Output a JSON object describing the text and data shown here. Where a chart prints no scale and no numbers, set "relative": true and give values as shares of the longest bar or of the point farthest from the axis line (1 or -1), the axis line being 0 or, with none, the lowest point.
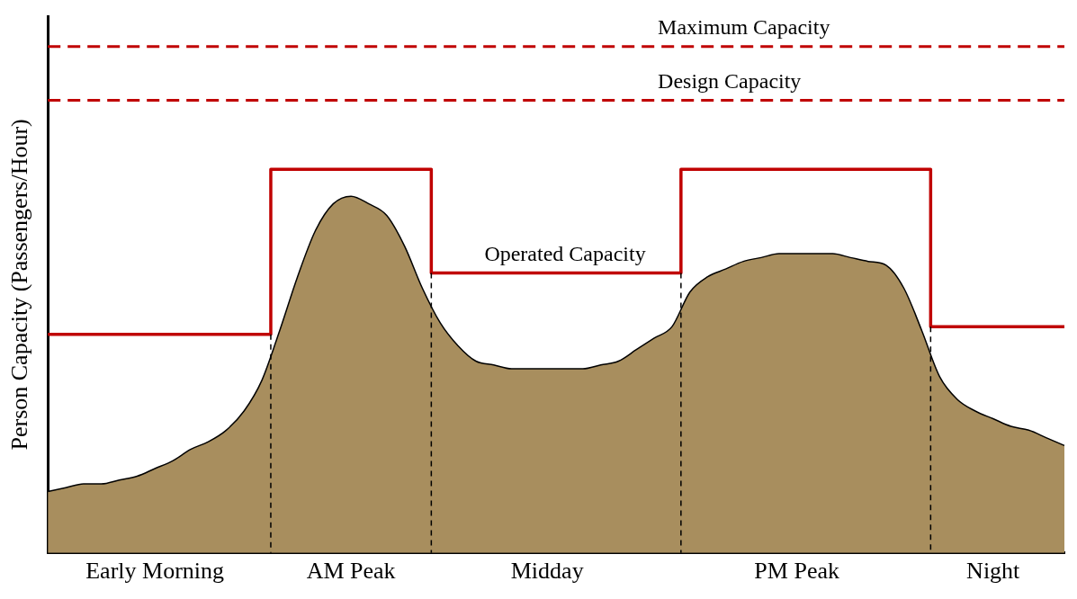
{
  "chart_data": {
    "type": "area",
    "relative": true,
    "ylabel": "Person Capacity (Passengers/Hour)",
    "categories": [
      null,
      null,
      null,
      null,
      null,
      null,
      "Early Morning",
      null,
      null,
      null,
      null,
      null,
      null,
      null,
      null,
      null,
      null,
      "AM Peak",
      null,
      null,
      null,
      null,
      null,
      null,
      null,
      null,
      null,
      null,
      "Midday",
      null,
      null,
      null,
      null,
      null,
      null,
      null,
      null,
      null,
      null,
      null,
      null,
      null,
      "PM Peak",
      null,
      null,
      null,
      null,
      null,
      null,
      null,
      null,
      null,
      null,
      "Night",
      null,
      null,
      null,
      null
    ],
    "grid": false,
    "legend": false,
    "marker": "none",
    "series": [
      {
        "color": "#a88e5e",
        "values": [
          0.16,
          0.17,
          0.18,
          0.18,
          0.19,
          0.2,
          0.22,
          0.24,
          0.27,
          0.29,
          0.32,
          0.37,
          0.45,
          0.58,
          0.72,
          0.84,
          0.91,
          0.93,
          0.91,
          0.88,
          0.8,
          0.69,
          0.6,
          0.54,
          0.5,
          0.49,
          0.48,
          0.48,
          0.48,
          0.48,
          0.48,
          0.49,
          0.5,
          0.53,
          0.56,
          0.59,
          0.68,
          0.72,
          0.74,
          0.76,
          0.77,
          0.78,
          0.78,
          0.78,
          0.78,
          0.77,
          0.76,
          0.75,
          0.69,
          0.58,
          0.46,
          0.4,
          0.37,
          0.35,
          0.33,
          0.32,
          0.3,
          0.28
        ]
      },
      {
        "type": "step",
        "name": "Operated Capacity",
        "color": "#c00000",
        "values": [
          0.57,
          0.57,
          0.57,
          0.57,
          0.57,
          0.57,
          0.57,
          0.57,
          0.57,
          0.57,
          0.57,
          0.57,
          0.57,
          1,
          1,
          1,
          1,
          1,
          1,
          1,
          1,
          1,
          0.73,
          0.73,
          0.73,
          0.73,
          0.73,
          0.73,
          0.73,
          0.73,
          0.73,
          0.73,
          0.73,
          0.73,
          0.73,
          0.73,
          1,
          1,
          1,
          1,
          1,
          1,
          1,
          1,
          1,
          1,
          1,
          1,
          1,
          1,
          0.59,
          0.59,
          0.59,
          0.59,
          0.59,
          0.59,
          0.59,
          0.59
        ]
      }
    ],
    "ref_lines": [
      {
        "axis": "y",
        "value": 1.32,
        "label": "Maximum Capacity",
        "color": "#c00000",
        "line_style": "dashed"
      },
      {
        "axis": "y",
        "value": 1.18,
        "label": "Design Capacity",
        "color": "#c00000",
        "line_style": "dashed"
      }
    ]
  }
}
